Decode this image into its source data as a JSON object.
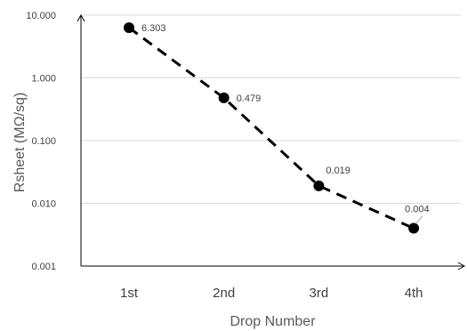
{
  "chart_data": {
    "type": "line",
    "title": "",
    "xlabel": "Drop Number",
    "ylabel": "Rsheet (MΩ/sq)",
    "y_scale": "log",
    "ylim": [
      0.001,
      10
    ],
    "grid": true,
    "y_ticks": [
      "10.000",
      "1.000",
      "0.100",
      "0.010",
      "0.001"
    ],
    "categories": [
      "1st",
      "2nd",
      "3rd",
      "4th"
    ],
    "series": [
      {
        "values": [
          6.303,
          0.479,
          0.019,
          0.004
        ],
        "data_labels": [
          "6.303",
          "0.479",
          "0.019",
          "0.004"
        ],
        "line_style": "dashed",
        "marker": "circle",
        "color": "#000000"
      }
    ]
  }
}
